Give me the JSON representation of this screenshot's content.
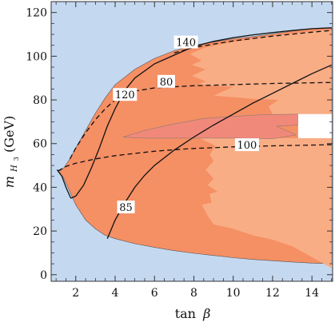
{
  "chart_data": {
    "type": "area",
    "xlabel_main": "tan",
    "xlabel_greek": "β",
    "ylabel_main": "m",
    "ylabel_sub": "H",
    "ylabel_subsub": "3",
    "ylabel_unit": "(GeV)",
    "xlim": [
      0.75,
      15.05
    ],
    "ylim": [
      -3,
      125
    ],
    "x_ticks": [
      "2",
      "4",
      "6",
      "8",
      "10",
      "12",
      "14"
    ],
    "y_ticks": [
      "0",
      "20",
      "40",
      "60",
      "80",
      "100",
      "120"
    ],
    "grid": false,
    "colors": {
      "background": "#c4d8f0",
      "allowed_region": "#f9ad85",
      "dark_region": "#f58f64",
      "band": "#f1897a",
      "white_gap": "#ffffff",
      "lines": "#111111"
    },
    "regions": [
      {
        "role": "allowed-envelope",
        "upper": [
          [
            1.05,
            48
          ],
          [
            1.2,
            47.5
          ],
          [
            1.4,
            49
          ],
          [
            1.7,
            53
          ],
          [
            2.0,
            58
          ],
          [
            2.5,
            66
          ],
          [
            3,
            74
          ],
          [
            3.5,
            81
          ],
          [
            4,
            87
          ],
          [
            5,
            94
          ],
          [
            6,
            99
          ],
          [
            7,
            102.5
          ],
          [
            8,
            105
          ],
          [
            9,
            106.5
          ],
          [
            10,
            108
          ],
          [
            11,
            109
          ],
          [
            12,
            110.2
          ],
          [
            13,
            111.5
          ],
          [
            14,
            112.5
          ],
          [
            15,
            113
          ]
        ],
        "lower": [
          [
            15,
            5
          ],
          [
            14,
            5.3
          ],
          [
            13,
            5.8
          ],
          [
            12,
            6.4
          ],
          [
            11,
            7
          ],
          [
            10,
            7.8
          ],
          [
            9,
            8.8
          ],
          [
            8,
            9.8
          ],
          [
            7,
            11
          ],
          [
            6,
            12.5
          ],
          [
            5,
            14.2
          ],
          [
            4,
            16.5
          ],
          [
            3.5,
            18
          ],
          [
            3,
            21
          ],
          [
            2.5,
            25
          ],
          [
            2,
            32
          ],
          [
            1.7,
            38
          ],
          [
            1.4,
            44
          ],
          [
            1.2,
            46.5
          ],
          [
            1.05,
            48
          ]
        ]
      },
      {
        "role": "light-subregion",
        "points": [
          [
            7.8,
            101
          ],
          [
            8.5,
            103.8
          ],
          [
            9.5,
            105.8
          ],
          [
            10.5,
            107.2
          ],
          [
            11.5,
            108.5
          ],
          [
            12.5,
            109.8
          ],
          [
            13.5,
            110.8
          ],
          [
            14.5,
            111.8
          ],
          [
            15,
            112
          ],
          [
            15,
            3
          ],
          [
            14,
            8
          ],
          [
            13,
            13
          ],
          [
            12,
            16
          ],
          [
            11,
            18
          ],
          [
            10,
            21
          ],
          [
            9,
            23
          ],
          [
            8.7,
            27
          ],
          [
            8.4,
            32
          ],
          [
            8.9,
            33
          ],
          [
            8.8,
            37
          ],
          [
            9.2,
            38
          ],
          [
            8.7,
            41
          ],
          [
            9,
            44
          ],
          [
            8.6,
            48
          ],
          [
            9,
            52
          ],
          [
            8.8,
            55
          ],
          [
            9.1,
            59
          ],
          [
            8.3,
            62.5
          ],
          [
            13.3,
            62.5
          ],
          [
            13.3,
            73.5
          ],
          [
            12,
            73.5
          ],
          [
            11.8,
            77
          ],
          [
            12.3,
            80
          ],
          [
            11,
            80.5
          ],
          [
            9,
            82
          ],
          [
            10,
            86
          ],
          [
            8.2,
            87
          ],
          [
            8.6,
            88.5
          ],
          [
            7.9,
            91
          ],
          [
            8.6,
            94
          ],
          [
            7.9,
            96
          ],
          [
            8.4,
            98
          ]
        ]
      },
      {
        "role": "band",
        "points": [
          [
            4.4,
            63
          ],
          [
            5.5,
            66
          ],
          [
            7,
            69
          ],
          [
            8.5,
            71.5
          ],
          [
            10,
            72.5
          ],
          [
            11.5,
            73.2
          ],
          [
            13.3,
            73.5
          ],
          [
            13.3,
            68.5
          ],
          [
            12.2,
            68
          ],
          [
            13.2,
            64
          ],
          [
            12,
            62.2
          ],
          [
            10,
            62.5
          ],
          [
            7,
            62.5
          ],
          [
            5.5,
            62.5
          ],
          [
            4.4,
            63
          ]
        ]
      },
      {
        "role": "white-gap",
        "points": [
          [
            13.3,
            73.5
          ],
          [
            15,
            73.5
          ],
          [
            15,
            62.5
          ],
          [
            13.3,
            62.5
          ]
        ]
      }
    ],
    "series": [
      {
        "style": "solid",
        "contour_label": "85",
        "points": [
          [
            3.6,
            16.5
          ],
          [
            4,
            25
          ],
          [
            4.5,
            33
          ],
          [
            5,
            40
          ],
          [
            5.5,
            45.5
          ],
          [
            6,
            50
          ],
          [
            7,
            57
          ],
          [
            8,
            63
          ],
          [
            9,
            68.5
          ],
          [
            10,
            73.5
          ],
          [
            11,
            78.5
          ],
          [
            12,
            83
          ],
          [
            13,
            87.5
          ],
          [
            14,
            92
          ],
          [
            15,
            96
          ]
        ]
      },
      {
        "style": "solid",
        "contour_label": "120",
        "points": [
          [
            1.75,
            35
          ],
          [
            2,
            36
          ],
          [
            2.4,
            41
          ],
          [
            2.8,
            49
          ],
          [
            3.2,
            58
          ],
          [
            3.6,
            68
          ],
          [
            4,
            76
          ],
          [
            4.5,
            84.5
          ],
          [
            5,
            90
          ],
          [
            6,
            96.5
          ],
          [
            7,
            100.5
          ],
          [
            8,
            104.5
          ],
          [
            9,
            106.8
          ],
          [
            10,
            108.5
          ],
          [
            11,
            109.8
          ],
          [
            12,
            110.8
          ],
          [
            13,
            111.8
          ],
          [
            14,
            112.6
          ],
          [
            15,
            113
          ]
        ]
      },
      {
        "style": "solid",
        "contour_label": "140",
        "points": [
          [
            1.05,
            48
          ],
          [
            1.3,
            45
          ],
          [
            1.5,
            40
          ],
          [
            1.75,
            35
          ]
        ]
      },
      {
        "style": "dashed",
        "contour_label": "80",
        "points": [
          [
            1.7,
            53
          ],
          [
            2,
            58
          ],
          [
            2.5,
            65
          ],
          [
            3,
            71
          ],
          [
            3.5,
            76
          ],
          [
            4,
            80
          ],
          [
            4.5,
            82.5
          ],
          [
            5,
            84
          ],
          [
            6,
            85.5
          ],
          [
            7,
            86
          ],
          [
            8,
            86.5
          ],
          [
            10,
            87
          ],
          [
            12,
            87.5
          ],
          [
            15,
            88
          ]
        ]
      },
      {
        "style": "dashed",
        "contour_label": "100",
        "points": [
          [
            1.1,
            47.5
          ],
          [
            1.5,
            49.5
          ],
          [
            2,
            51
          ],
          [
            3,
            53
          ],
          [
            4,
            54.5
          ],
          [
            5,
            55.5
          ],
          [
            6,
            56.5
          ],
          [
            7,
            57.2
          ],
          [
            8,
            57.8
          ],
          [
            10,
            58.5
          ],
          [
            12,
            59
          ],
          [
            15,
            59.5
          ]
        ]
      },
      {
        "style": "dashed",
        "points": [
          [
            7,
            101.5
          ],
          [
            8,
            104
          ],
          [
            10,
            107
          ],
          [
            12,
            109.2
          ],
          [
            14,
            111
          ],
          [
            15,
            111.8
          ]
        ]
      }
    ],
    "contour_labels": [
      {
        "text": "140",
        "x": 7.6,
        "y": 106.5
      },
      {
        "text": "80",
        "x": 6.6,
        "y": 88.5
      },
      {
        "text": "120",
        "x": 4.5,
        "y": 82.5
      },
      {
        "text": "100",
        "x": 10.7,
        "y": 59.5
      },
      {
        "text": "85",
        "x": 4.55,
        "y": 31
      }
    ]
  }
}
